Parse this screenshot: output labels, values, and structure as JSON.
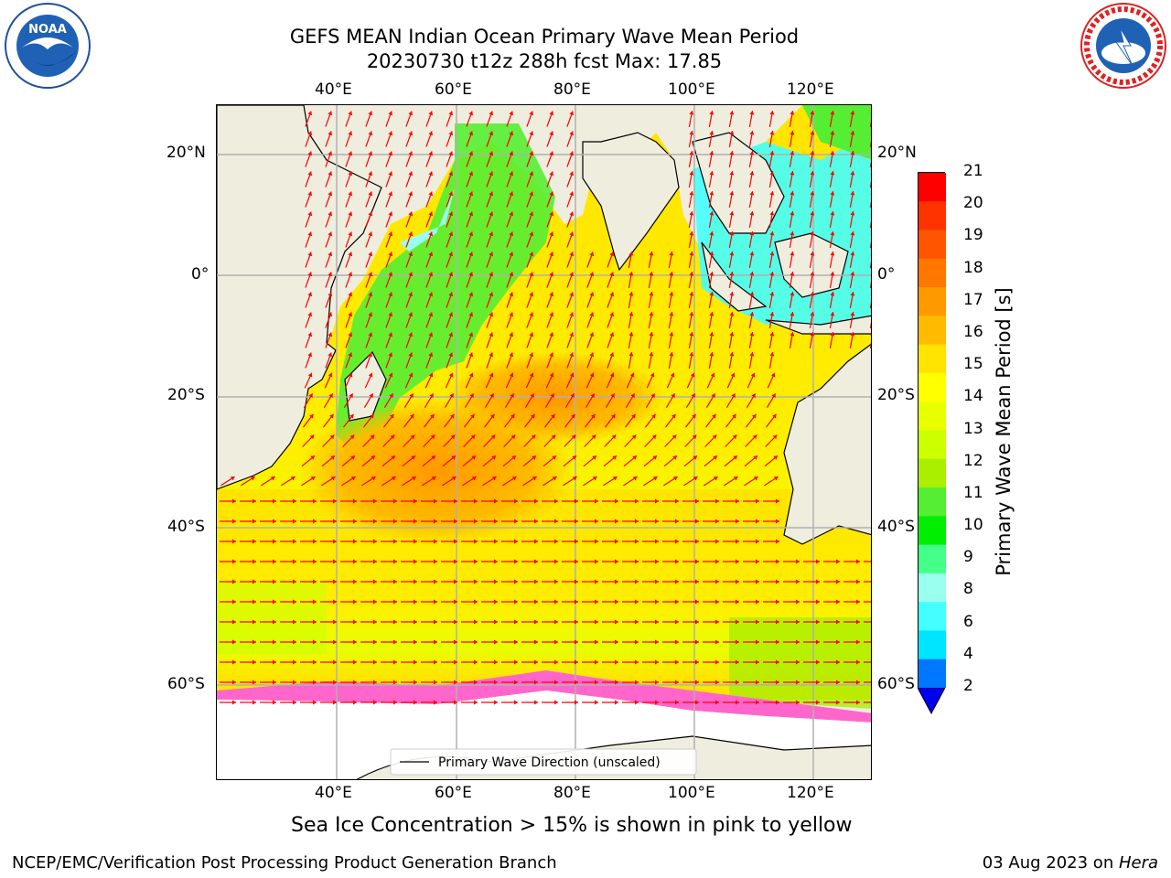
{
  "title": {
    "line1": "GEFS MEAN Indian Ocean Primary Wave Mean Period",
    "line2": "20230730 t12z 288h fcst   Max: 17.85"
  },
  "map": {
    "lon_ticks": [
      "40°E",
      "60°E",
      "80°E",
      "100°E",
      "120°E"
    ],
    "lat_ticks": [
      "20°N",
      "0°",
      "20°S",
      "40°S",
      "60°S"
    ],
    "legend_label": "Primary Wave Direction (unscaled)"
  },
  "colorbar": {
    "title": "Primary Wave Mean Period [s]",
    "labels": [
      "21",
      "20",
      "19",
      "18",
      "17",
      "16",
      "15",
      "14",
      "13",
      "12",
      "11",
      "10",
      "9",
      "8",
      "6",
      "4",
      "2"
    ],
    "colors": [
      "#ff0000",
      "#ff3300",
      "#ff5500",
      "#ff7700",
      "#ff9900",
      "#ffbb00",
      "#ffe400",
      "#ffff00",
      "#e8ff00",
      "#ccff00",
      "#aaee00",
      "#55ee33",
      "#00ee00",
      "#44ff88",
      "#99ffee",
      "#44ffff",
      "#00e5ff",
      "#0077ff"
    ],
    "under_color": "#0000ee"
  },
  "colors": {
    "land": "#efedde",
    "arrow": "#ff0000",
    "grid": "#b0b0b0",
    "ice_pink": "#ff66cc"
  },
  "notes": {
    "sea_ice": "Sea Ice Concentration > 15% is shown in pink to yellow"
  },
  "footer": {
    "left": "NCEP/EMC/Verification Post Processing Product Generation Branch",
    "date": "03 Aug 2023 on ",
    "machine": "Hera"
  },
  "logos": {
    "left": "noaa-logo",
    "left_text": "NOAA",
    "right": "nws-logo",
    "right_text": "NATIONAL WEATHER SERVICE"
  }
}
